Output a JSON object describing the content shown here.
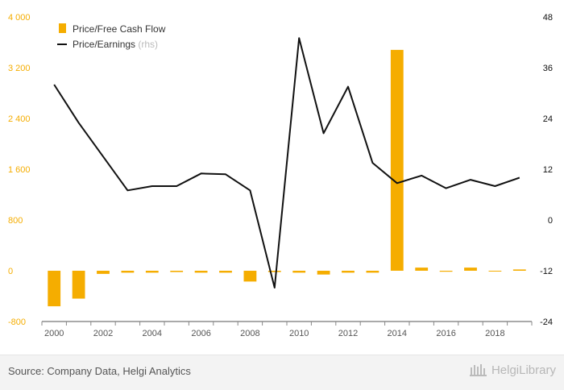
{
  "chart_data": {
    "type": "bar+line",
    "categories": [
      "2000",
      "2001",
      "2002",
      "2003",
      "2004",
      "2005",
      "2006",
      "2007",
      "2008",
      "2009",
      "2010",
      "2011",
      "2012",
      "2013",
      "2014",
      "2015",
      "2016",
      "2017",
      "2018",
      "2019"
    ],
    "x_tick_labels": [
      "2000",
      "2002",
      "2004",
      "2006",
      "2008",
      "2010",
      "2012",
      "2014",
      "2016",
      "2018"
    ],
    "series": [
      {
        "name": "Price/Free Cash Flow",
        "type": "bar",
        "axis": "left",
        "color": "#f5ad00",
        "values": [
          -560,
          -440,
          -50,
          -30,
          -30,
          -20,
          -30,
          -30,
          -170,
          -20,
          -30,
          -60,
          -30,
          -30,
          3480,
          50,
          -15,
          50,
          -10,
          20
        ]
      },
      {
        "name": "Price/Earnings",
        "name_suffix": "(rhs)",
        "type": "line",
        "axis": "right",
        "color": "#111111",
        "values": [
          32,
          23,
          15,
          7,
          8,
          8,
          11,
          10.8,
          7,
          -16,
          43,
          20.5,
          31.5,
          13.5,
          8.7,
          10.5,
          7.5,
          9.5,
          8,
          10
        ]
      }
    ],
    "left_axis": {
      "min": -800,
      "max": 4000,
      "ticks": [
        "-800",
        "0",
        "800",
        "1 600",
        "2 400",
        "3 200",
        "4 000"
      ],
      "color": "#f5ad00"
    },
    "right_axis": {
      "min": -24,
      "max": 48,
      "ticks": [
        "-24",
        "-12",
        "0",
        "12",
        "24",
        "36",
        "48"
      ],
      "color": "#111111"
    },
    "legend_position": "top-left",
    "grid": false
  },
  "footer": {
    "source": "Source: Company Data, Helgi Analytics",
    "brand": "HelgiLibrary"
  }
}
